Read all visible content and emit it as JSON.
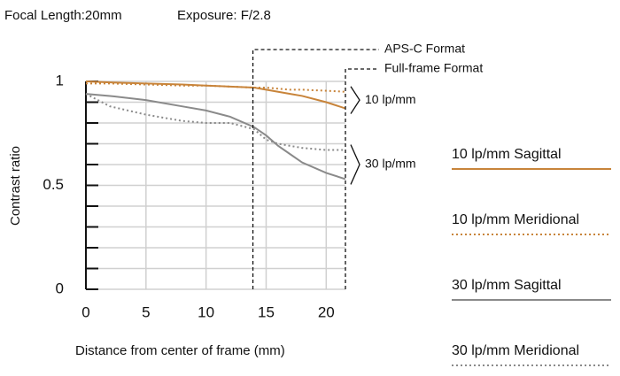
{
  "chart_data": {
    "type": "line",
    "header": [
      "Focal Length:20mm",
      "Exposure: F/2.8"
    ],
    "xlabel": "Distance from center of frame (mm)",
    "ylabel": "Contrast ratio",
    "xlim": [
      0,
      21.6
    ],
    "ylim": [
      0,
      1
    ],
    "xticks": [
      0,
      5,
      10,
      15,
      20
    ],
    "yticks": [
      0,
      0.5,
      1
    ],
    "minor_yticks": [
      0.1,
      0.2,
      0.3,
      0.4,
      0.6,
      0.7,
      0.8,
      0.9
    ],
    "grid": true,
    "x": [
      0,
      2,
      5,
      8,
      10,
      12,
      14,
      15,
      16,
      17,
      18,
      20,
      21.6
    ],
    "series": [
      {
        "name": "10 lp/mm Sagittal",
        "color": "#c8843a",
        "style": "solid",
        "values": [
          1.0,
          0.995,
          0.99,
          0.985,
          0.98,
          0.975,
          0.97,
          0.96,
          0.95,
          0.94,
          0.93,
          0.9,
          0.87
        ]
      },
      {
        "name": "10 lp/mm Meridional",
        "color": "#c8843a",
        "style": "dotted",
        "values": [
          0.99,
          0.99,
          0.985,
          0.98,
          0.98,
          0.975,
          0.97,
          0.97,
          0.965,
          0.96,
          0.96,
          0.955,
          0.95
        ]
      },
      {
        "name": "30 lp/mm Sagittal",
        "color": "#8a8a8a",
        "style": "solid",
        "values": [
          0.94,
          0.93,
          0.91,
          0.88,
          0.86,
          0.83,
          0.78,
          0.74,
          0.69,
          0.65,
          0.61,
          0.56,
          0.53
        ]
      },
      {
        "name": "30 lp/mm Meridional",
        "color": "#8a8a8a",
        "style": "dotted",
        "values": [
          0.94,
          0.88,
          0.84,
          0.81,
          0.8,
          0.8,
          0.77,
          0.72,
          0.7,
          0.69,
          0.68,
          0.67,
          0.67
        ]
      }
    ],
    "format_lines": [
      {
        "label": "APS-C Format",
        "x": 13.9
      },
      {
        "label": "Full-frame Format",
        "x": 21.6
      }
    ],
    "brackets": [
      {
        "label": "10 lp/mm",
        "series": [
          0,
          1
        ]
      },
      {
        "label": "30 lp/mm",
        "series": [
          2,
          3
        ]
      }
    ]
  }
}
